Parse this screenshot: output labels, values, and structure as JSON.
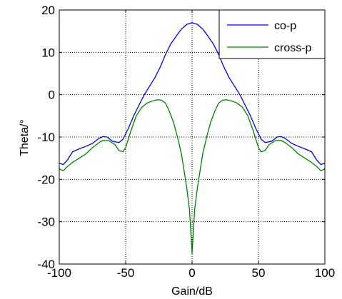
{
  "chart_data": {
    "type": "line",
    "title": "",
    "xlabel": "Gain/dB",
    "ylabel": "Theta/°",
    "xlim": [
      -100,
      100
    ],
    "ylim": [
      -40,
      20
    ],
    "xticks": [
      -100,
      -50,
      0,
      50,
      100
    ],
    "yticks": [
      20,
      10,
      0,
      -10,
      -20,
      -30,
      -40
    ],
    "xtick_labels": [
      "-100",
      "-50",
      "0",
      "50",
      "100"
    ],
    "ytick_labels": [
      "20",
      "10",
      "0",
      "-10",
      "-20",
      "-30",
      "-40"
    ],
    "grid": true,
    "legend_position": "top-right",
    "series": [
      {
        "name": "co-p",
        "color": "#0000ff",
        "points": [
          [
            -100,
            -16.2
          ],
          [
            -97,
            -16.5
          ],
          [
            -94,
            -15.5
          ],
          [
            -90,
            -13.5
          ],
          [
            -85,
            -12.8
          ],
          [
            -80,
            -12.2
          ],
          [
            -75,
            -11.5
          ],
          [
            -70,
            -10.3
          ],
          [
            -67,
            -9.9
          ],
          [
            -64,
            -10.0
          ],
          [
            -60,
            -11.0
          ],
          [
            -55,
            -11.3
          ],
          [
            -52,
            -10.5
          ],
          [
            -48,
            -8.0
          ],
          [
            -44,
            -5.0
          ],
          [
            -40,
            -2.5
          ],
          [
            -36,
            0.0
          ],
          [
            -32,
            2.0
          ],
          [
            -28,
            4.0
          ],
          [
            -24,
            6.5
          ],
          [
            -20,
            9.5
          ],
          [
            -16,
            12.0
          ],
          [
            -12,
            13.8
          ],
          [
            -8,
            15.5
          ],
          [
            -4,
            16.6
          ],
          [
            0,
            17.0
          ],
          [
            4,
            16.6
          ],
          [
            8,
            15.5
          ],
          [
            12,
            13.8
          ],
          [
            16,
            12.0
          ],
          [
            20,
            9.5
          ],
          [
            24,
            6.5
          ],
          [
            28,
            4.0
          ],
          [
            32,
            2.0
          ],
          [
            36,
            0.0
          ],
          [
            40,
            -2.5
          ],
          [
            44,
            -5.0
          ],
          [
            48,
            -8.0
          ],
          [
            52,
            -10.5
          ],
          [
            55,
            -11.3
          ],
          [
            60,
            -11.0
          ],
          [
            64,
            -10.0
          ],
          [
            67,
            -9.9
          ],
          [
            70,
            -10.3
          ],
          [
            75,
            -11.5
          ],
          [
            80,
            -12.2
          ],
          [
            85,
            -12.8
          ],
          [
            90,
            -13.5
          ],
          [
            94,
            -15.5
          ],
          [
            97,
            -16.5
          ],
          [
            100,
            -16.2
          ]
        ]
      },
      {
        "name": "cross-p",
        "color": "#008000",
        "points": [
          [
            -100,
            -17.5
          ],
          [
            -97,
            -18.0
          ],
          [
            -94,
            -17.0
          ],
          [
            -90,
            -16.0
          ],
          [
            -85,
            -15.0
          ],
          [
            -80,
            -14.0
          ],
          [
            -75,
            -12.5
          ],
          [
            -70,
            -11.3
          ],
          [
            -67,
            -10.8
          ],
          [
            -63,
            -10.8
          ],
          [
            -58,
            -11.8
          ],
          [
            -55,
            -13.2
          ],
          [
            -52,
            -13.5
          ],
          [
            -50,
            -12.5
          ],
          [
            -46,
            -8.5
          ],
          [
            -42,
            -5.0
          ],
          [
            -38,
            -3.0
          ],
          [
            -34,
            -2.0
          ],
          [
            -30,
            -1.5
          ],
          [
            -26,
            -1.2
          ],
          [
            -23,
            -1.3
          ],
          [
            -20,
            -2.0
          ],
          [
            -17,
            -4.0
          ],
          [
            -14,
            -6.5
          ],
          [
            -11,
            -10.0
          ],
          [
            -8,
            -14.0
          ],
          [
            -6,
            -18.0
          ],
          [
            -4,
            -22.0
          ],
          [
            -2,
            -27.0
          ],
          [
            -1,
            -32.0
          ],
          [
            0,
            -37.5
          ],
          [
            1,
            -32.0
          ],
          [
            2,
            -27.0
          ],
          [
            4,
            -22.0
          ],
          [
            6,
            -18.0
          ],
          [
            8,
            -14.0
          ],
          [
            11,
            -10.0
          ],
          [
            14,
            -6.5
          ],
          [
            17,
            -4.0
          ],
          [
            20,
            -2.0
          ],
          [
            23,
            -1.3
          ],
          [
            26,
            -1.2
          ],
          [
            30,
            -1.5
          ],
          [
            34,
            -2.0
          ],
          [
            38,
            -3.0
          ],
          [
            42,
            -5.0
          ],
          [
            46,
            -8.5
          ],
          [
            50,
            -12.5
          ],
          [
            52,
            -13.5
          ],
          [
            55,
            -13.2
          ],
          [
            58,
            -11.8
          ],
          [
            63,
            -10.8
          ],
          [
            67,
            -10.8
          ],
          [
            70,
            -11.3
          ],
          [
            75,
            -12.5
          ],
          [
            80,
            -14.0
          ],
          [
            85,
            -15.0
          ],
          [
            90,
            -16.0
          ],
          [
            94,
            -17.0
          ],
          [
            97,
            -18.0
          ],
          [
            100,
            -17.5
          ]
        ]
      }
    ]
  }
}
